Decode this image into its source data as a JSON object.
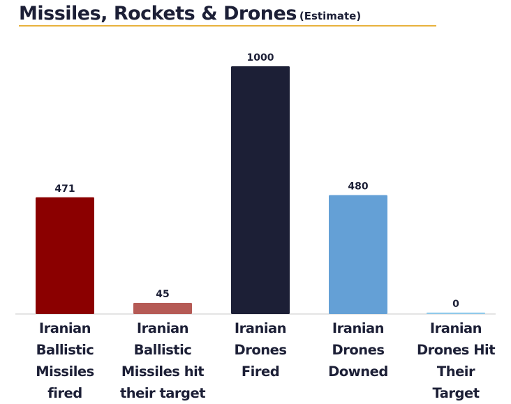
{
  "header": {
    "title": "Missiles, Rockets & Drones",
    "subtitle": "(Estimate)",
    "rule_color": "#e8b23c"
  },
  "chart_data": {
    "type": "bar",
    "title": "Missiles, Rockets & Drones (Estimate)",
    "xlabel": "",
    "ylabel": "",
    "ylim": [
      0,
      1000
    ],
    "grid": false,
    "categories": [
      "Iranian\nBallistic\nMissiles\nfired",
      "Iranian\nBallistic\nMissiles hit\ntheir target",
      "Iranian\nDrones\nFired",
      "Iranian\nDrones\nDowned",
      "Iranian\nDrones Hit\nTheir\nTarget"
    ],
    "values": [
      471,
      45,
      1000,
      480,
      0
    ],
    "value_labels": [
      "471",
      "45",
      "1000",
      "480",
      "0"
    ],
    "colors": [
      "#8b0000",
      "#b55a55",
      "#1c1f36",
      "#64a0d6",
      "#8ec9ea"
    ]
  }
}
